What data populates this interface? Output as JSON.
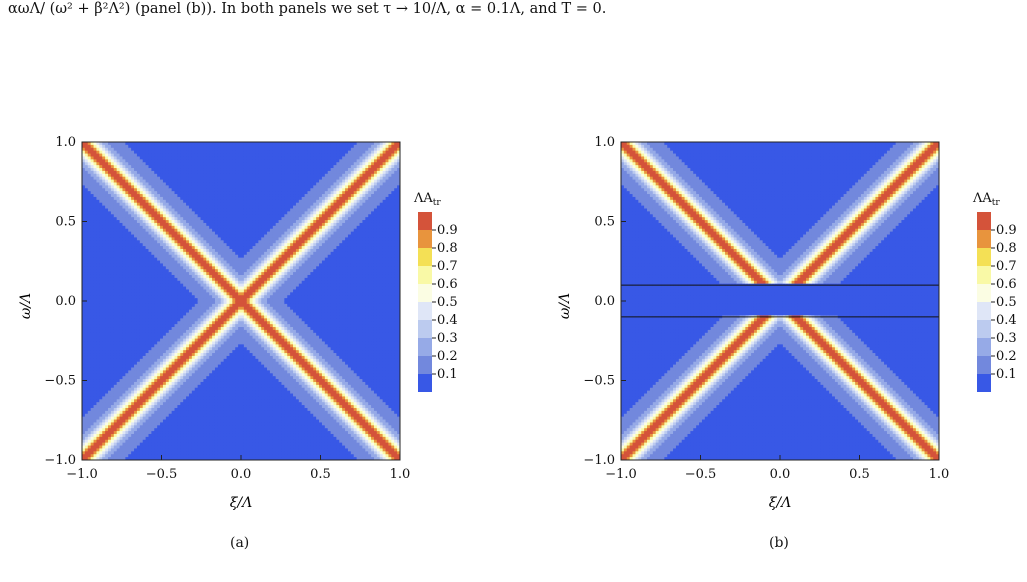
{
  "caption_line": "αωΛ/ (ω² + β²Λ²) (panel (b)). In both panels we set τ → 10/Λ, α = 0.1Λ, and T = 0.",
  "panels": [
    {
      "label": "(a)",
      "ylabel": "ω/Λ",
      "xlabel": "ξ/Λ"
    },
    {
      "label": "(b)",
      "ylabel": "ω/Λ",
      "xlabel": "ξ/Λ"
    }
  ],
  "colorbar": {
    "title": "ΛA",
    "title_sub": "tr",
    "ticks": [
      "0.9",
      "0.8",
      "0.7",
      "0.6",
      "0.5",
      "0.4",
      "0.3",
      "0.2",
      "0.1"
    ],
    "colors": [
      "#d4533a",
      "#e8943d",
      "#f4e055",
      "#f9f9a6",
      "#fbfde3",
      "#dfe6f7",
      "#bccbef",
      "#96aae7",
      "#7288dd",
      "#3858e6"
    ]
  },
  "chart_data": [
    {
      "type": "heatmap",
      "title": "",
      "xlabel": "ξ/Λ",
      "ylabel": "ω/Λ",
      "xlim": [
        -1.0,
        1.0
      ],
      "ylim": [
        -1.0,
        1.0
      ],
      "xticks": [
        "−1.0",
        "−0.5",
        "0.0",
        "0.5",
        "1.0"
      ],
      "yticks": [
        "1.0",
        "0.5",
        "0.0",
        "−0.5",
        "−1.0"
      ],
      "colorbar_label": "ΛA_tr",
      "levels": [
        0.1,
        0.2,
        0.3,
        0.4,
        0.5,
        0.6,
        0.7,
        0.8,
        0.9
      ],
      "feature": "high spectral weight along ω = ±ξ lines (X shape)",
      "gap": null
    },
    {
      "type": "heatmap",
      "title": "",
      "xlabel": "ξ/Λ",
      "ylabel": "ω/Λ",
      "xlim": [
        -1.0,
        1.0
      ],
      "ylim": [
        -1.0,
        1.0
      ],
      "xticks": [
        "−1.0",
        "−0.5",
        "0.0",
        "0.5",
        "1.0"
      ],
      "yticks": [
        "1.0",
        "0.5",
        "0.0",
        "−0.5",
        "−1.0"
      ],
      "colorbar_label": "ΛA_tr",
      "levels": [
        0.1,
        0.2,
        0.3,
        0.4,
        0.5,
        0.6,
        0.7,
        0.8,
        0.9
      ],
      "feature": "high spectral weight along ω = ±ξ lines (X shape)",
      "gap": [
        -0.1,
        0.1
      ]
    }
  ]
}
